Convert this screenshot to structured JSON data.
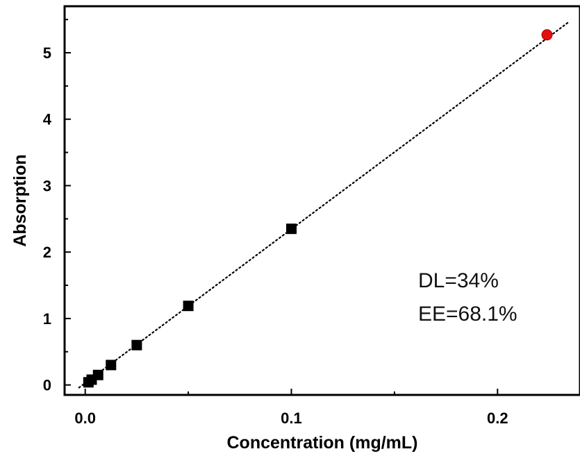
{
  "chart_data": {
    "type": "scatter",
    "xlabel": "Concentration (mg/mL)",
    "ylabel": "Absorption",
    "xlim": [
      -0.01,
      0.24
    ],
    "ylim": [
      -0.15,
      5.7
    ],
    "x_ticks": [
      0.0,
      0.1,
      0.2
    ],
    "x_tick_labels": [
      "0.0",
      "0.1",
      "0.2"
    ],
    "y_ticks": [
      0,
      1,
      2,
      3,
      4,
      5
    ],
    "y_tick_labels": [
      "0",
      "1",
      "2",
      "3",
      "4",
      "5"
    ],
    "grid": false,
    "series": [
      {
        "marker": "square",
        "color": "#000000",
        "x": [
          0.00156,
          0.00313,
          0.00625,
          0.0125,
          0.025,
          0.05,
          0.1
        ],
        "y": [
          0.04,
          0.08,
          0.15,
          0.3,
          0.6,
          1.19,
          2.35
        ]
      },
      {
        "marker": "circle",
        "color": "#e01010",
        "x": [
          0.224
        ],
        "y": [
          5.27
        ]
      }
    ],
    "fit_line": {
      "style": "dotted",
      "color": "#000000",
      "x": [
        -0.003,
        0.234
      ],
      "y": [
        -0.04,
        5.45
      ]
    },
    "annotations": [
      "DL=34%",
      "EE=68.1%"
    ]
  }
}
